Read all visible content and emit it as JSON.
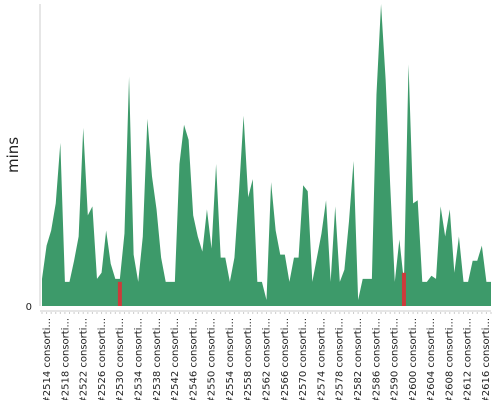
{
  "chart_data": {
    "type": "area",
    "title": "",
    "xlabel": "",
    "ylabel": "mins",
    "ylim": [
      0,
      100
    ],
    "y_ticks": [
      "0"
    ],
    "grid": false,
    "legend": "none",
    "colors": {
      "pass": "#3d9a6a",
      "fail": "#cc3b3b",
      "axis": "#cccccc"
    },
    "x_tick_labels": [
      "#2514 consorti...",
      "#2518 consorti...",
      "#2522 consorti...",
      "#2526 consorti...",
      "#2530 consorti...",
      "#2534 consorti...",
      "#2538 consorti...",
      "#2542 consorti...",
      "#2546 consorti...",
      "#2550 consorti...",
      "#2554 consorti...",
      "#2558 consorti...",
      "#2562 consorti...",
      "#2566 consorti...",
      "#2570 consorti...",
      "#2574 consorti...",
      "#2578 consorti...",
      "#2582 consorti...",
      "#2586 consorti...",
      "#2590 consorti...",
      "#2600 consorti...",
      "#2604 consorti...",
      "#2608 consorti...",
      "#2612 consorti...",
      "#2616 consorti..."
    ],
    "series": [
      {
        "status": "pass",
        "values": [
          9,
          20,
          25,
          34,
          54,
          8,
          8,
          15,
          23,
          59,
          30,
          33,
          9,
          11,
          25,
          14,
          9,
          9,
          24,
          76,
          17,
          8,
          23,
          62,
          43,
          32,
          16,
          8,
          8,
          8,
          47,
          60,
          55,
          30,
          23,
          18,
          32,
          19,
          47,
          16,
          16,
          8,
          16,
          38,
          63,
          36,
          42,
          8,
          8,
          2,
          41,
          25,
          17,
          17,
          8,
          16,
          16,
          40,
          38,
          8,
          16,
          24,
          35,
          8,
          33,
          8,
          12,
          28,
          48,
          2,
          9,
          9,
          9,
          70,
          100,
          75,
          40,
          8,
          22,
          8,
          80,
          34,
          35,
          8,
          8,
          10,
          9,
          33,
          23,
          32,
          11,
          23,
          8,
          8,
          15,
          15,
          20,
          8,
          8
        ]
      },
      {
        "status": "fail",
        "values": [
          0,
          0,
          0,
          0,
          0,
          0,
          0,
          0,
          0,
          0,
          0,
          0,
          0,
          0,
          0,
          0,
          0,
          8,
          0,
          0,
          0,
          0,
          0,
          0,
          0,
          0,
          0,
          0,
          0,
          0,
          0,
          0,
          0,
          0,
          0,
          0,
          0,
          0,
          0,
          0,
          0,
          0,
          0,
          0,
          0,
          0,
          0,
          0,
          0,
          0,
          0,
          0,
          0,
          0,
          0,
          0,
          0,
          0,
          0,
          0,
          0,
          0,
          0,
          0,
          0,
          0,
          0,
          0,
          0,
          0,
          0,
          0,
          0,
          0,
          0,
          0,
          0,
          0,
          0,
          11,
          0,
          0,
          0,
          0,
          0,
          0,
          0,
          0,
          0,
          0,
          0,
          0,
          0,
          0,
          0,
          0,
          0,
          0,
          0
        ]
      }
    ]
  }
}
